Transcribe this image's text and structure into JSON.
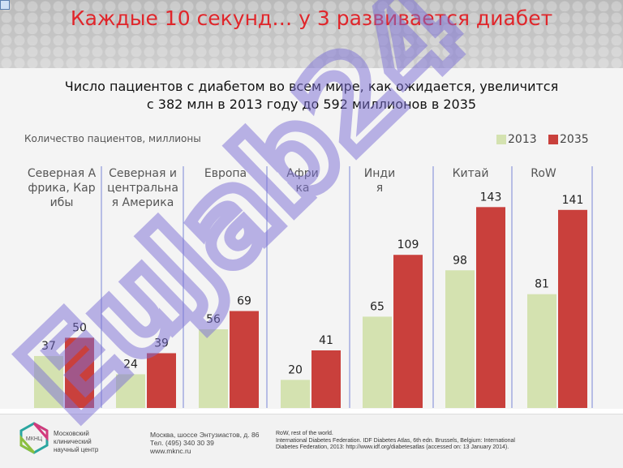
{
  "header": {
    "title": "Каждые 10 секунд… у 3 развивается диабет"
  },
  "subtitle_lines": [
    "Число пациентов с диабетом во всем мире, как ожидается, увеличится",
    "с 382 млн в 2013 году до 592 миллионов в 2035"
  ],
  "chart_data": {
    "type": "bar",
    "ylabel": "Количество пациентов, миллионы",
    "categories": [
      "Северная Африка, Карибы",
      "Северная и центральная Америка",
      "Европа",
      "Африка",
      "Индия",
      "Китай",
      "RoW"
    ],
    "series": [
      {
        "name": "2013",
        "values": [
          37,
          24,
          56,
          20,
          65,
          98,
          81
        ],
        "color": "#d4e2b0"
      },
      {
        "name": "2035",
        "values": [
          50,
          39,
          69,
          41,
          109,
          143,
          141
        ],
        "color": "#c9403c"
      }
    ],
    "legend_position": "top-right",
    "ylim": [
      0,
      150
    ]
  },
  "watermark": {
    "text": "EuJab24",
    "color": "#7b6fd6"
  },
  "footer": {
    "logo_abbrev": "МКНЦ",
    "logo_lines": [
      "Московский",
      "клинический",
      "научный центр"
    ],
    "address_lines": [
      "Москва, шоссе Энтузиастов, д. 86",
      "Тел. (495) 340 30 39",
      "www.mknc.ru"
    ],
    "notes": [
      "RoW, rest of the world.",
      "International Diabetes Federation. IDF Diabetes Atlas, 6th edn. Brussels, Belgium: International",
      "Diabetes Federation, 2013: http://www.idf.org/diabetesatlas (accessed on: 13 January 2014)."
    ]
  }
}
